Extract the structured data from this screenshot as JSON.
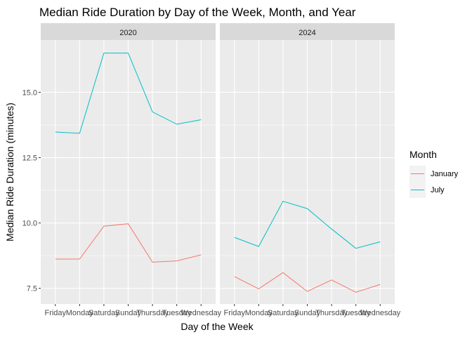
{
  "chart_data": {
    "type": "line",
    "title": "Median Ride Duration by Day of the Week, Month, and Year",
    "xlabel": "Day of the Week",
    "ylabel": "Median Ride Duration (minutes)",
    "categories": [
      "Friday",
      "Monday",
      "Saturday",
      "Sunday",
      "Thursday",
      "Tuesday",
      "Wednesday"
    ],
    "y_ticks": [
      7.5,
      10.0,
      12.5,
      15.0
    ],
    "y_tick_labels": [
      "7.5",
      "10.0",
      "12.5",
      "15.0"
    ],
    "ylim": [
      6.9,
      17.0
    ],
    "grid": true,
    "legend": {
      "title": "Month",
      "placement": "right",
      "entries": [
        "January",
        "July"
      ]
    },
    "colors": {
      "January": "#F8766D",
      "July": "#00BFC4",
      "panel_bg": "#EBEBEB",
      "strip_bg": "#D9D9D9",
      "grid": "#FFFFFF"
    },
    "panels": [
      {
        "label": "2020",
        "series": [
          {
            "name": "January",
            "values": [
              8.62,
              8.62,
              9.88,
              9.97,
              8.5,
              8.55,
              8.78
            ]
          },
          {
            "name": "July",
            "values": [
              13.48,
              13.43,
              16.5,
              16.5,
              14.25,
              13.78,
              13.95
            ]
          }
        ]
      },
      {
        "label": "2024",
        "series": [
          {
            "name": "January",
            "values": [
              7.95,
              7.48,
              8.1,
              7.38,
              7.82,
              7.35,
              7.65
            ]
          },
          {
            "name": "July",
            "values": [
              9.45,
              9.1,
              10.83,
              10.55,
              9.77,
              9.03,
              9.28
            ]
          }
        ]
      }
    ]
  }
}
